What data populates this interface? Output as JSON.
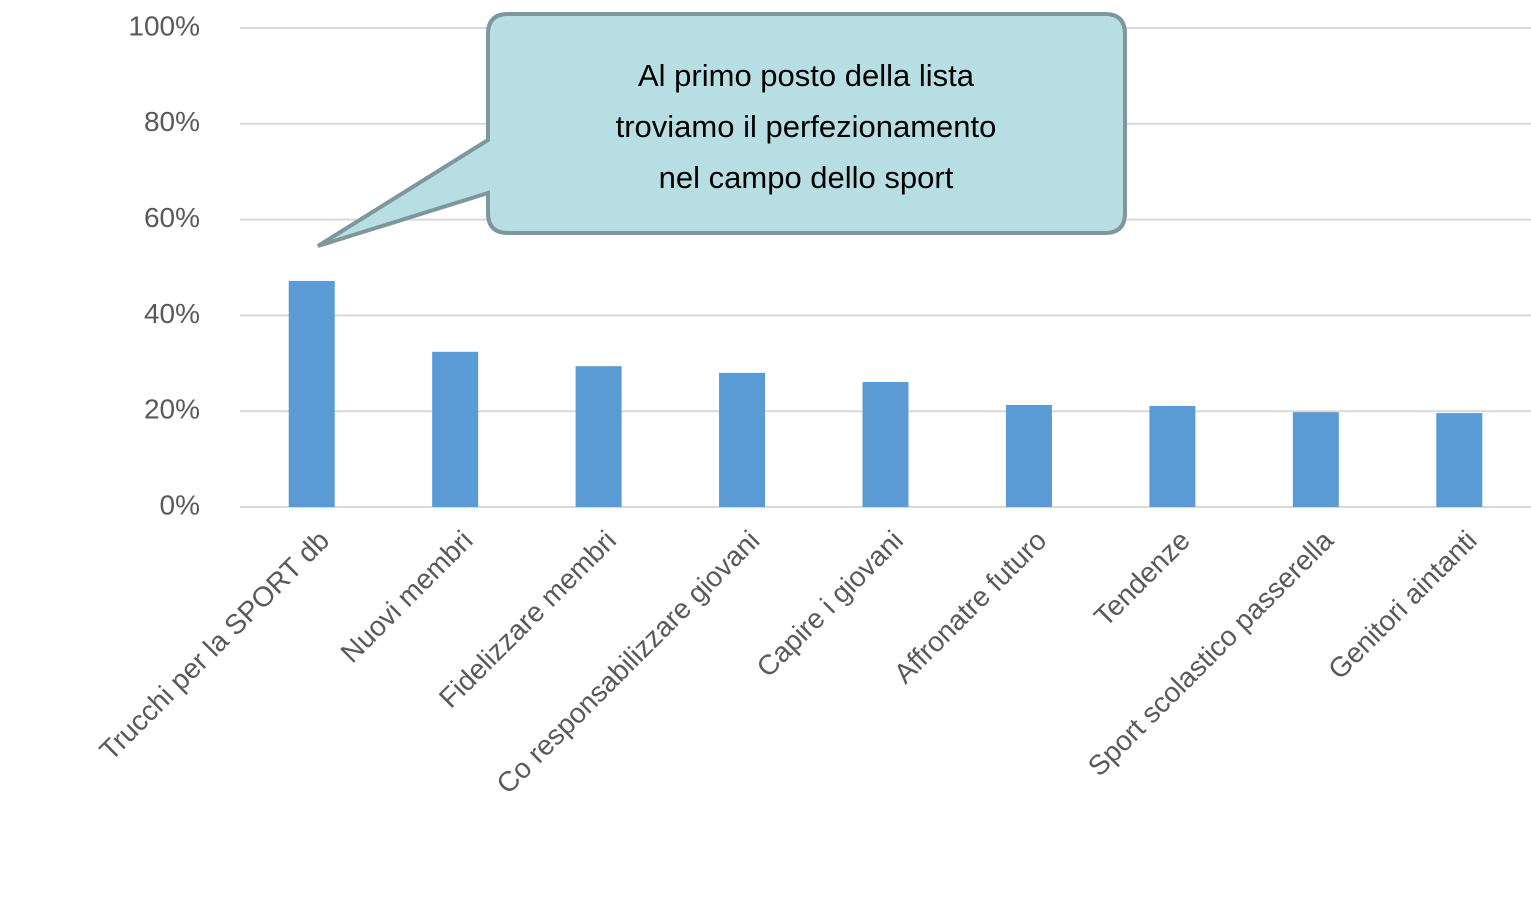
{
  "chart_data": {
    "type": "bar",
    "categories": [
      "Trucchi per la SPORT db",
      "Nuovi membri",
      "Fidelizzare membri",
      "Co responsabilizzare giovani",
      "Capire i giovani",
      "Affronatre futuro",
      "Tendenze",
      "Sport scolastico passerella",
      "Genitori aintanti"
    ],
    "values": [
      47.2,
      32.4,
      29.4,
      28.0,
      26.1,
      21.3,
      21.1,
      19.8,
      19.6
    ],
    "color": "#5b9bd5",
    "ylim": [
      0,
      100
    ],
    "yticks": [
      {
        "value": 0,
        "label": "0%"
      },
      {
        "value": 20,
        "label": "20%"
      },
      {
        "value": 40,
        "label": "40%"
      },
      {
        "value": 60,
        "label": "60%"
      },
      {
        "value": 80,
        "label": "80%"
      },
      {
        "value": 100,
        "label": "100%"
      }
    ],
    "grid": true,
    "annotation": [
      "Al primo posto della lista",
      "troviamo il perfezionamento",
      "nel campo dello sport"
    ]
  }
}
